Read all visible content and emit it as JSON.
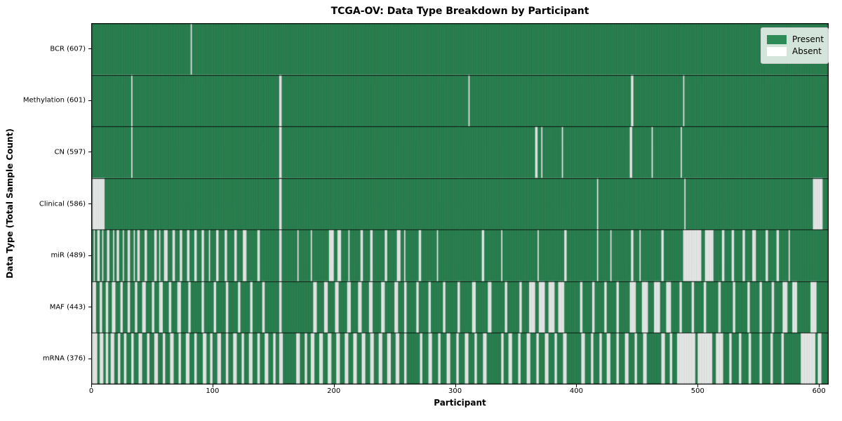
{
  "title": "TCGA-OV: Data Type Breakdown by Participant",
  "x_axis": {
    "label": "Participant",
    "ticks": [
      0,
      100,
      200,
      300,
      400,
      500,
      600
    ],
    "min": 0,
    "max": 608
  },
  "y_axis": {
    "label": "Data Type (Total Sample Count)"
  },
  "legend": {
    "items": [
      {
        "label": "Present",
        "color": "#2e8b57"
      },
      {
        "label": "Absent",
        "color": "#ffffff"
      }
    ]
  },
  "colors": {
    "present": "#2e8b57",
    "absent": "#ffffff",
    "bar_edge": "rgba(15,30,22,0.38)",
    "row_separator": "rgba(0,0,0,0.85)",
    "axes_border": "#000000",
    "legend_bg": "rgba(255,255,255,0.8)",
    "legend_border": "#cccccc",
    "text": "#000000"
  },
  "chart_data": {
    "type": "heatmap",
    "title": "TCGA-OV: Data Type Breakdown by Participant",
    "xlabel": "Participant",
    "ylabel": "Data Type (Total Sample Count)",
    "states": [
      "Present",
      "Absent"
    ],
    "x_range": [
      0,
      608
    ],
    "n_participants": 608,
    "x_ticks": [
      0,
      100,
      200,
      300,
      400,
      500,
      600
    ],
    "legend_position": "upper right",
    "rows": [
      {
        "label": "BCR (607)",
        "name": "BCR",
        "total": 607,
        "absent_ranges": [
          [
            82,
            82
          ]
        ]
      },
      {
        "label": "Methylation (601)",
        "name": "Methylation",
        "total": 601,
        "absent_ranges": [
          [
            33,
            33
          ],
          [
            155,
            156
          ],
          [
            311,
            311
          ],
          [
            445,
            446
          ],
          [
            488,
            488
          ]
        ]
      },
      {
        "label": "CN (597)",
        "name": "CN",
        "total": 597,
        "absent_ranges": [
          [
            33,
            33
          ],
          [
            155,
            156
          ],
          [
            366,
            367
          ],
          [
            371,
            371
          ],
          [
            388,
            388
          ],
          [
            444,
            445
          ],
          [
            462,
            462
          ],
          [
            486,
            486
          ]
        ]
      },
      {
        "label": "Clinical (586)",
        "name": "Clinical",
        "total": 586,
        "absent_ranges": [
          [
            1,
            10
          ],
          [
            155,
            156
          ],
          [
            417,
            417
          ],
          [
            489,
            489
          ],
          [
            595,
            602
          ]
        ]
      },
      {
        "label": "miR (489)",
        "name": "miR",
        "total": 489,
        "absent_ranges": [
          [
            2,
            2
          ],
          [
            5,
            6
          ],
          [
            9,
            9
          ],
          [
            13,
            14
          ],
          [
            18,
            18
          ],
          [
            21,
            22
          ],
          [
            26,
            26
          ],
          [
            30,
            31
          ],
          [
            35,
            35
          ],
          [
            38,
            39
          ],
          [
            44,
            45
          ],
          [
            52,
            53
          ],
          [
            56,
            56
          ],
          [
            60,
            62
          ],
          [
            67,
            68
          ],
          [
            73,
            74
          ],
          [
            79,
            80
          ],
          [
            85,
            86
          ],
          [
            91,
            92
          ],
          [
            97,
            97
          ],
          [
            103,
            104
          ],
          [
            110,
            111
          ],
          [
            118,
            119
          ],
          [
            125,
            127
          ],
          [
            137,
            138
          ],
          [
            155,
            156
          ],
          [
            170,
            170
          ],
          [
            181,
            181
          ],
          [
            196,
            199
          ],
          [
            203,
            205
          ],
          [
            212,
            212
          ],
          [
            222,
            223
          ],
          [
            230,
            231
          ],
          [
            242,
            243
          ],
          [
            252,
            254
          ],
          [
            258,
            258
          ],
          [
            270,
            271
          ],
          [
            285,
            285
          ],
          [
            322,
            323
          ],
          [
            338,
            338
          ],
          [
            368,
            368
          ],
          [
            390,
            391
          ],
          [
            417,
            417
          ],
          [
            428,
            428
          ],
          [
            445,
            446
          ],
          [
            452,
            452
          ],
          [
            470,
            471
          ],
          [
            488,
            502
          ],
          [
            506,
            512
          ],
          [
            520,
            521
          ],
          [
            528,
            529
          ],
          [
            537,
            538
          ],
          [
            545,
            547
          ],
          [
            556,
            557
          ],
          [
            565,
            566
          ],
          [
            575,
            575
          ]
        ]
      },
      {
        "label": "MAF (443)",
        "name": "MAF",
        "total": 443,
        "absent_ranges": [
          [
            1,
            3
          ],
          [
            7,
            8
          ],
          [
            12,
            13
          ],
          [
            17,
            19
          ],
          [
            24,
            25
          ],
          [
            30,
            31
          ],
          [
            36,
            37
          ],
          [
            42,
            44
          ],
          [
            50,
            51
          ],
          [
            56,
            58
          ],
          [
            64,
            65
          ],
          [
            71,
            73
          ],
          [
            80,
            81
          ],
          [
            91,
            92
          ],
          [
            101,
            102
          ],
          [
            111,
            112
          ],
          [
            121,
            122
          ],
          [
            131,
            132
          ],
          [
            141,
            142
          ],
          [
            155,
            156
          ],
          [
            183,
            185
          ],
          [
            192,
            194
          ],
          [
            201,
            203
          ],
          [
            211,
            213
          ],
          [
            220,
            222
          ],
          [
            229,
            231
          ],
          [
            239,
            241
          ],
          [
            250,
            252
          ],
          [
            258,
            259
          ],
          [
            268,
            269
          ],
          [
            278,
            279
          ],
          [
            290,
            291
          ],
          [
            302,
            303
          ],
          [
            314,
            316
          ],
          [
            327,
            329
          ],
          [
            341,
            342
          ],
          [
            353,
            354
          ],
          [
            361,
            365
          ],
          [
            369,
            373
          ],
          [
            377,
            381
          ],
          [
            385,
            389
          ],
          [
            403,
            404
          ],
          [
            413,
            414
          ],
          [
            423,
            424
          ],
          [
            433,
            434
          ],
          [
            444,
            448
          ],
          [
            454,
            458
          ],
          [
            464,
            468
          ],
          [
            474,
            477
          ],
          [
            485,
            486
          ],
          [
            495,
            496
          ],
          [
            505,
            506
          ],
          [
            517,
            518
          ],
          [
            529,
            530
          ],
          [
            541,
            542
          ],
          [
            551,
            552
          ],
          [
            561,
            562
          ],
          [
            570,
            573
          ],
          [
            578,
            581
          ],
          [
            593,
            597
          ]
        ]
      },
      {
        "label": "mRNA (376)",
        "name": "mRNA",
        "total": 376,
        "absent_ranges": [
          [
            0,
            4
          ],
          [
            7,
            9
          ],
          [
            12,
            13
          ],
          [
            16,
            18
          ],
          [
            22,
            23
          ],
          [
            27,
            28
          ],
          [
            33,
            34
          ],
          [
            39,
            41
          ],
          [
            46,
            47
          ],
          [
            52,
            54
          ],
          [
            59,
            60
          ],
          [
            65,
            67
          ],
          [
            72,
            73
          ],
          [
            78,
            80
          ],
          [
            85,
            86
          ],
          [
            92,
            94
          ],
          [
            98,
            99
          ],
          [
            104,
            106
          ],
          [
            111,
            112
          ],
          [
            117,
            119
          ],
          [
            124,
            125
          ],
          [
            130,
            132
          ],
          [
            137,
            138
          ],
          [
            143,
            145
          ],
          [
            150,
            151
          ],
          [
            155,
            157
          ],
          [
            169,
            171
          ],
          [
            176,
            177
          ],
          [
            181,
            183
          ],
          [
            188,
            190
          ],
          [
            195,
            197
          ],
          [
            202,
            204
          ],
          [
            209,
            211
          ],
          [
            216,
            218
          ],
          [
            223,
            225
          ],
          [
            230,
            232
          ],
          [
            237,
            239
          ],
          [
            244,
            246
          ],
          [
            251,
            253
          ],
          [
            258,
            259
          ],
          [
            271,
            272
          ],
          [
            278,
            280
          ],
          [
            286,
            287
          ],
          [
            293,
            295
          ],
          [
            301,
            302
          ],
          [
            308,
            310
          ],
          [
            316,
            317
          ],
          [
            323,
            325
          ],
          [
            338,
            339
          ],
          [
            344,
            346
          ],
          [
            352,
            353
          ],
          [
            359,
            361
          ],
          [
            367,
            368
          ],
          [
            374,
            376
          ],
          [
            382,
            383
          ],
          [
            389,
            391
          ],
          [
            404,
            406
          ],
          [
            412,
            413
          ],
          [
            419,
            420
          ],
          [
            425,
            427
          ],
          [
            433,
            434
          ],
          [
            440,
            442
          ],
          [
            448,
            449
          ],
          [
            455,
            457
          ],
          [
            470,
            472
          ],
          [
            477,
            478
          ],
          [
            483,
            497
          ],
          [
            500,
            511
          ],
          [
            515,
            520
          ],
          [
            526,
            527
          ],
          [
            534,
            535
          ],
          [
            542,
            543
          ],
          [
            551,
            552
          ],
          [
            560,
            561
          ],
          [
            569,
            570
          ],
          [
            585,
            596
          ],
          [
            599,
            601
          ]
        ]
      }
    ]
  }
}
